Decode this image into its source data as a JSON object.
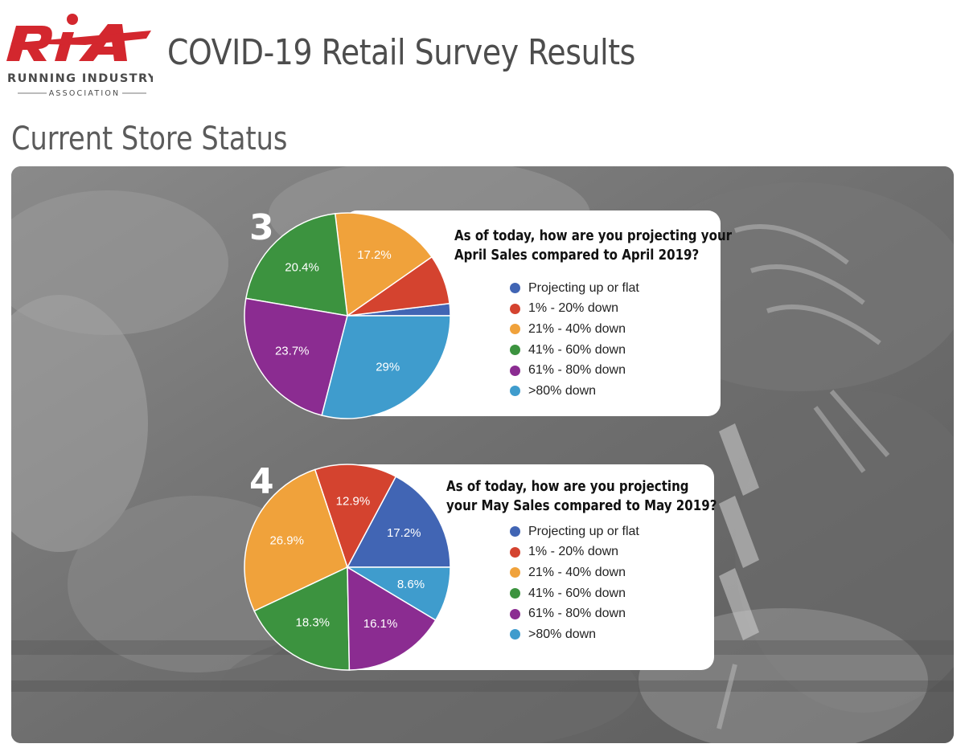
{
  "header": {
    "logo": {
      "mark": "RIA",
      "line1": "RUNNING INDUSTRY",
      "line2": "ASSOCIATION",
      "mark_color": "#d3272e"
    },
    "title": "COVID-19 Retail Survey Results"
  },
  "section_title": "Current Store Status",
  "colors": {
    "series": [
      "#4165b4",
      "#d4432f",
      "#f0a23b",
      "#3c933f",
      "#8b2c91",
      "#3f9ccd"
    ]
  },
  "chart_data": [
    {
      "type": "pie",
      "number": "3",
      "question_lines": [
        "As of today, how are you projecting your",
        "April Sales compared to April 2019?"
      ],
      "legend_position": "right",
      "categories": [
        "Projecting up or flat",
        "1% - 20% down",
        "21% - 40% down",
        "41% - 60% down",
        "61% - 80% down",
        ">80% down"
      ],
      "values": [
        1.9,
        7.8,
        17.2,
        20.4,
        23.7,
        29.0
      ],
      "labels": [
        "",
        "",
        "17.2%",
        "20.4%",
        "23.7%",
        "29%"
      ]
    },
    {
      "type": "pie",
      "number": "4",
      "question_lines": [
        "As of today, how are you projecting",
        "your May Sales compared to May 2019?"
      ],
      "legend_position": "right",
      "categories": [
        "Projecting up or flat",
        "1% - 20% down",
        "21% - 40% down",
        "41% - 60% down",
        "61% - 80% down",
        ">80% down"
      ],
      "values": [
        17.2,
        12.9,
        26.9,
        18.3,
        16.1,
        8.6
      ],
      "labels": [
        "17.2%",
        "12.9%",
        "26.9%",
        "18.3%",
        "16.1%",
        "8.6%"
      ]
    }
  ]
}
